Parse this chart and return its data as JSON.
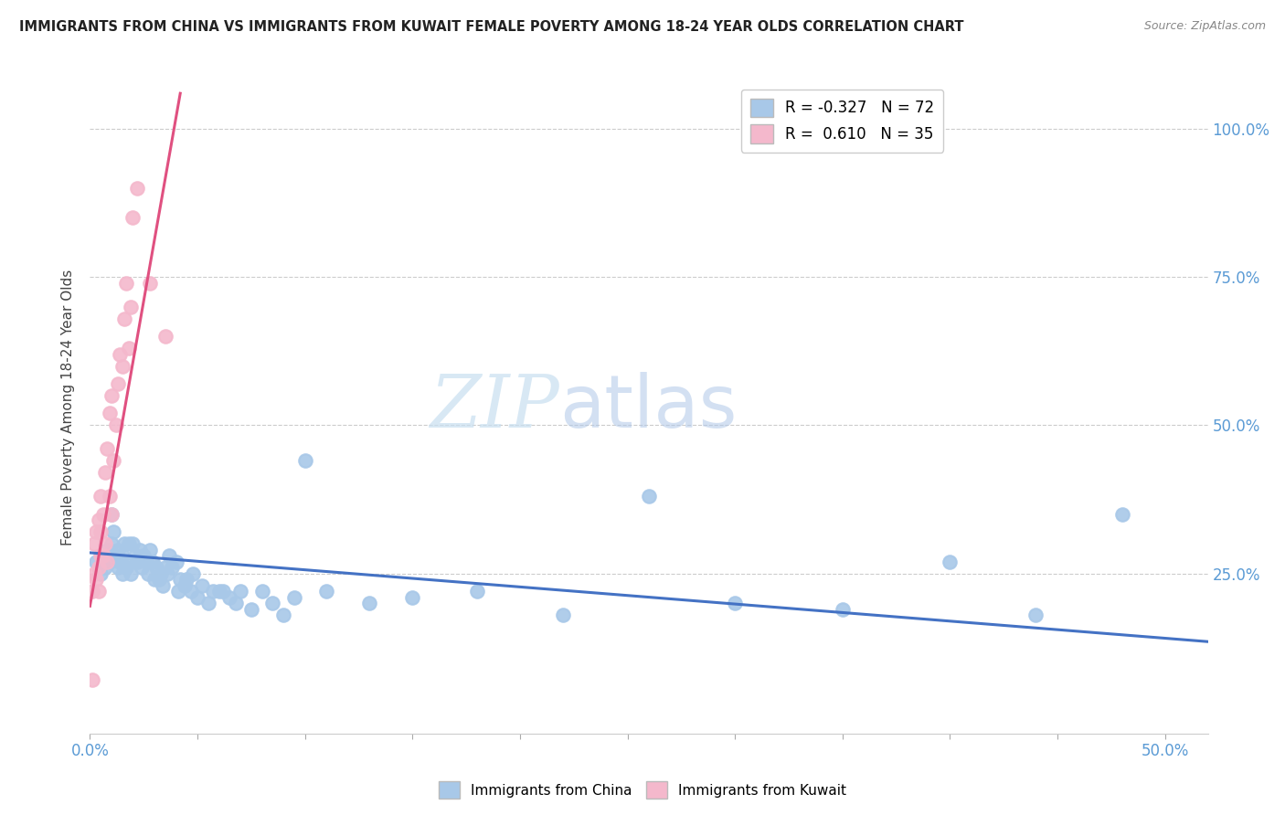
{
  "title": "IMMIGRANTS FROM CHINA VS IMMIGRANTS FROM KUWAIT FEMALE POVERTY AMONG 18-24 YEAR OLDS CORRELATION CHART",
  "source": "Source: ZipAtlas.com",
  "ylabel": "Female Poverty Among 18-24 Year Olds",
  "ytick_labels": [
    "100.0%",
    "75.0%",
    "50.0%",
    "25.0%"
  ],
  "ytick_values": [
    1.0,
    0.75,
    0.5,
    0.25
  ],
  "xlim": [
    0.0,
    0.52
  ],
  "ylim": [
    -0.02,
    1.08
  ],
  "watermark_zip": "ZIP",
  "watermark_atlas": "atlas",
  "legend_blue_r": "-0.327",
  "legend_blue_n": "72",
  "legend_pink_r": "0.610",
  "legend_pink_n": "35",
  "color_blue": "#a8c8e8",
  "color_blue_line": "#4472c4",
  "color_pink": "#f4b8cc",
  "color_pink_line": "#e05080",
  "blue_x": [
    0.003,
    0.005,
    0.006,
    0.007,
    0.008,
    0.009,
    0.01,
    0.01,
    0.011,
    0.012,
    0.013,
    0.013,
    0.014,
    0.015,
    0.015,
    0.016,
    0.017,
    0.018,
    0.018,
    0.019,
    0.02,
    0.021,
    0.022,
    0.023,
    0.024,
    0.025,
    0.026,
    0.027,
    0.028,
    0.029,
    0.03,
    0.031,
    0.032,
    0.033,
    0.034,
    0.035,
    0.036,
    0.037,
    0.038,
    0.04,
    0.041,
    0.042,
    0.044,
    0.045,
    0.047,
    0.048,
    0.05,
    0.052,
    0.055,
    0.057,
    0.06,
    0.062,
    0.065,
    0.068,
    0.07,
    0.075,
    0.08,
    0.085,
    0.09,
    0.095,
    0.1,
    0.11,
    0.13,
    0.15,
    0.18,
    0.22,
    0.26,
    0.3,
    0.35,
    0.4,
    0.44,
    0.48
  ],
  "blue_y": [
    0.27,
    0.25,
    0.28,
    0.26,
    0.29,
    0.27,
    0.35,
    0.3,
    0.32,
    0.28,
    0.26,
    0.29,
    0.27,
    0.28,
    0.25,
    0.3,
    0.26,
    0.27,
    0.3,
    0.25,
    0.3,
    0.28,
    0.27,
    0.29,
    0.26,
    0.28,
    0.27,
    0.25,
    0.29,
    0.27,
    0.24,
    0.26,
    0.24,
    0.25,
    0.23,
    0.26,
    0.25,
    0.28,
    0.26,
    0.27,
    0.22,
    0.24,
    0.23,
    0.24,
    0.22,
    0.25,
    0.21,
    0.23,
    0.2,
    0.22,
    0.22,
    0.22,
    0.21,
    0.2,
    0.22,
    0.19,
    0.22,
    0.2,
    0.18,
    0.21,
    0.44,
    0.22,
    0.2,
    0.21,
    0.22,
    0.18,
    0.38,
    0.2,
    0.19,
    0.27,
    0.18,
    0.35
  ],
  "pink_x": [
    0.001,
    0.001,
    0.002,
    0.002,
    0.003,
    0.003,
    0.004,
    0.004,
    0.004,
    0.005,
    0.005,
    0.005,
    0.006,
    0.006,
    0.007,
    0.007,
    0.008,
    0.008,
    0.009,
    0.009,
    0.01,
    0.01,
    0.011,
    0.012,
    0.013,
    0.014,
    0.015,
    0.016,
    0.017,
    0.018,
    0.019,
    0.02,
    0.022,
    0.028,
    0.035
  ],
  "pink_y": [
    0.07,
    0.22,
    0.25,
    0.3,
    0.24,
    0.32,
    0.26,
    0.34,
    0.22,
    0.28,
    0.32,
    0.38,
    0.28,
    0.35,
    0.3,
    0.42,
    0.27,
    0.46,
    0.38,
    0.52,
    0.35,
    0.55,
    0.44,
    0.5,
    0.57,
    0.62,
    0.6,
    0.68,
    0.74,
    0.63,
    0.7,
    0.85,
    0.9,
    0.74,
    0.65
  ],
  "blue_trend_x": [
    0.0,
    0.52
  ],
  "blue_trend_y": [
    0.285,
    0.135
  ],
  "pink_trend_x": [
    0.0,
    0.042
  ],
  "pink_trend_y": [
    0.195,
    1.06
  ]
}
